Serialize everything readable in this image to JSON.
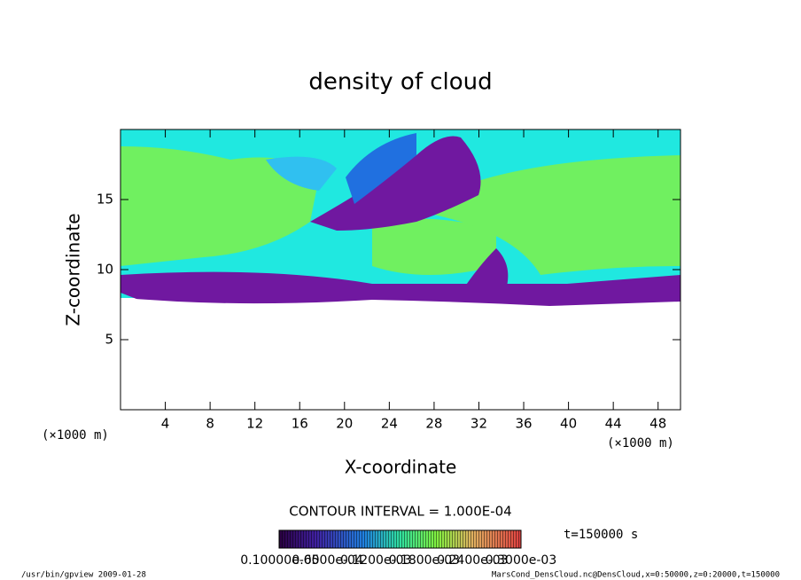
{
  "chart_data": {
    "type": "contour",
    "title": "density of cloud",
    "x_label": "X-coordinate",
    "y_label": "Z-coordinate",
    "x_unit": "(×1000 m)",
    "y_unit": "(×1000 m)",
    "xlim": [
      0,
      50
    ],
    "xticks": [
      4,
      8,
      12,
      16,
      20,
      24,
      28,
      32,
      36,
      40,
      44,
      48
    ],
    "ylim": [
      0,
      20
    ],
    "yticks": [
      5,
      10,
      15
    ],
    "contour_interval": "CONTOUR INTERVAL = 1.000E-04",
    "time": "t=150000 s",
    "colorbar": {
      "lim": [
        0,
        0.0003
      ],
      "ticks": [
        {
          "value": 1e-06,
          "label": "0.10000e-05"
        },
        {
          "value": 6e-05,
          "label": "0.6000e-04"
        },
        {
          "value": 0.00012,
          "label": "0.1200e-03"
        },
        {
          "value": 0.00018,
          "label": "0.1800e-03"
        },
        {
          "value": 0.00024,
          "label": "0.2400e-03"
        },
        {
          "value": 0.0003,
          "label": "0.3000e-03"
        }
      ]
    },
    "footer_left": "/usr/bin/gpview  2009-01-28",
    "footer_right": "MarsCond_DensCloud.nc@DensCloud,x=0:50000,z=0:20000,t=150000"
  }
}
